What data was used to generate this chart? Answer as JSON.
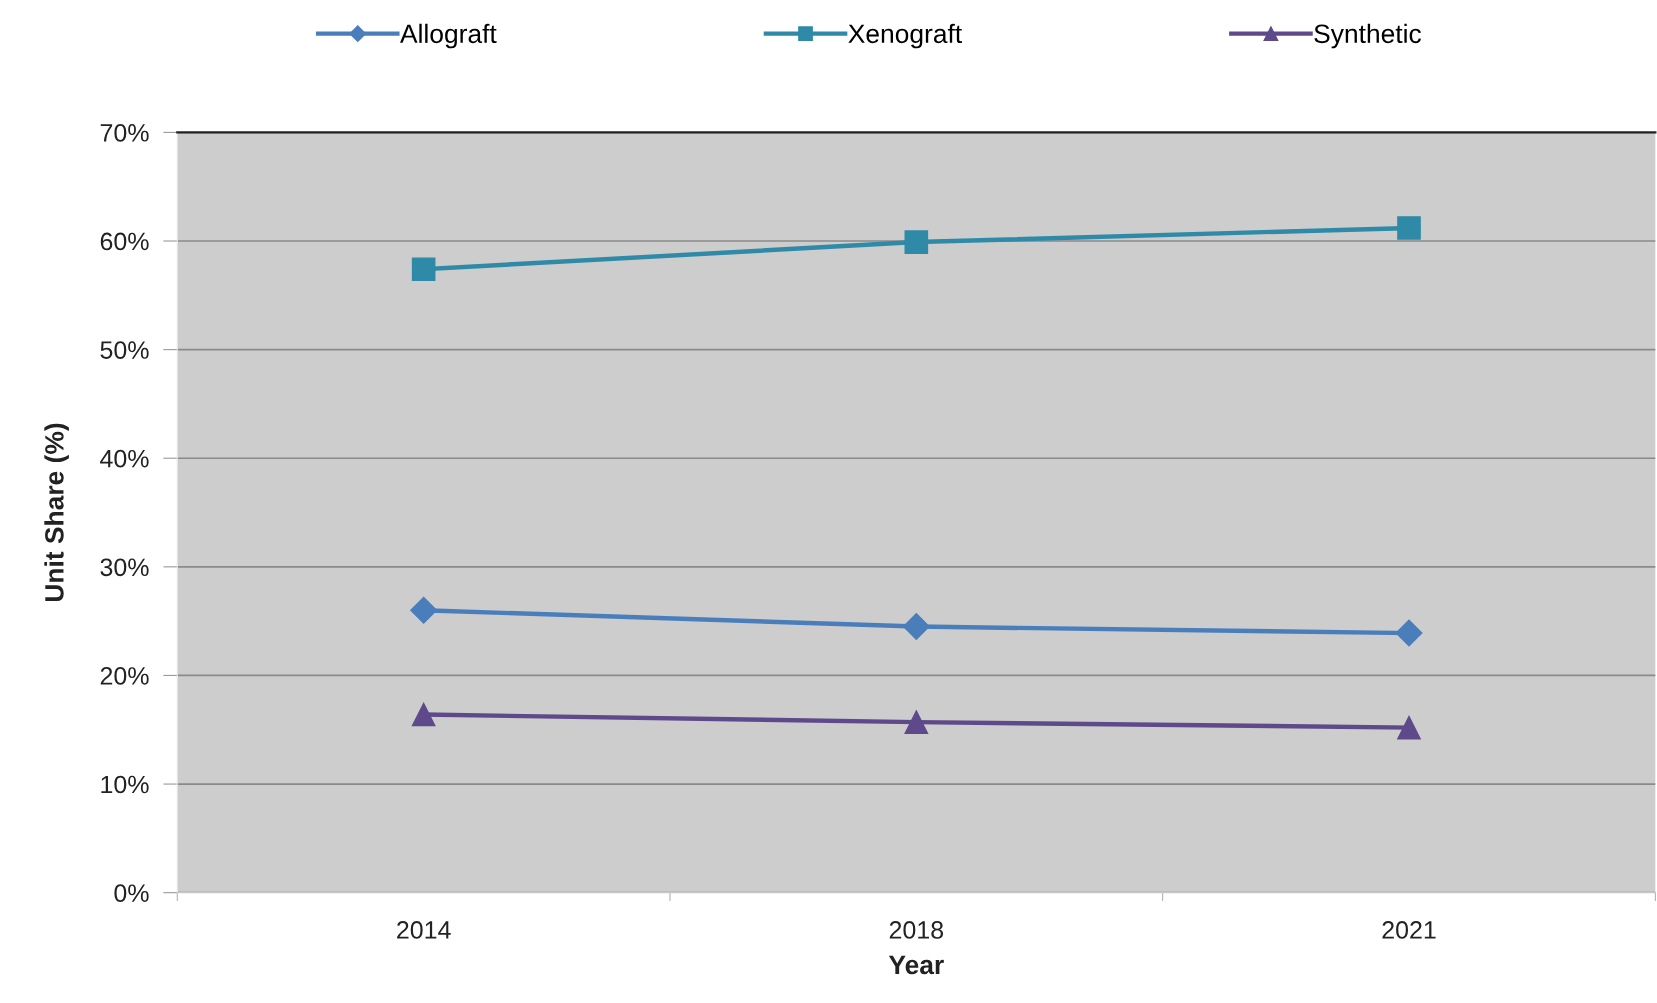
{
  "chart_data": {
    "type": "line",
    "xlabel": "Year",
    "ylabel": "Unit Share (%)",
    "categories": [
      "2014",
      "2018",
      "2021"
    ],
    "series": [
      {
        "name": "Allograft",
        "color": "#4a7ebb",
        "marker": "diamond",
        "values": [
          26.0,
          24.5,
          23.9
        ]
      },
      {
        "name": "Xenograft",
        "color": "#2e8aa6",
        "marker": "square",
        "values": [
          57.4,
          59.9,
          61.2
        ]
      },
      {
        "name": "Synthetic",
        "color": "#5e4a8a",
        "marker": "triangle",
        "values": [
          16.4,
          15.7,
          15.2
        ]
      }
    ],
    "ylim": [
      0,
      70
    ],
    "yticks": [
      {
        "value": 0,
        "label": "0%"
      },
      {
        "value": 10,
        "label": "10%"
      },
      {
        "value": 20,
        "label": "20%"
      },
      {
        "value": 30,
        "label": "30%"
      },
      {
        "value": 40,
        "label": "40%"
      },
      {
        "value": 50,
        "label": "50%"
      },
      {
        "value": 60,
        "label": "60%"
      },
      {
        "value": 70,
        "label": "70%"
      }
    ],
    "grid": "y",
    "legend": "top",
    "line_style": "solid"
  }
}
